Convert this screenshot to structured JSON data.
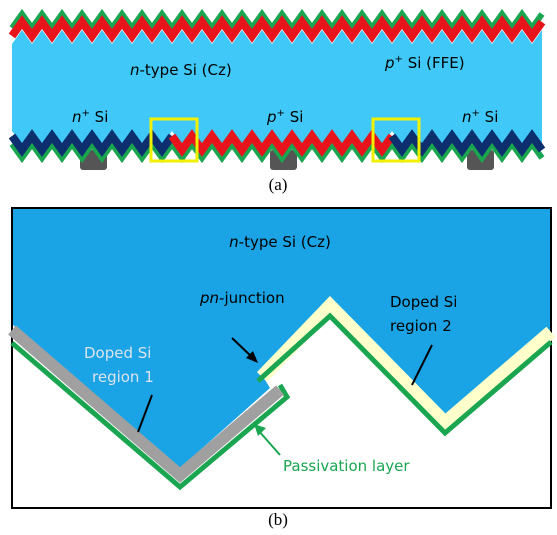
{
  "panel_a": {
    "caption": "(a)",
    "bulk": [
      "n",
      "-type Si (Cz)"
    ],
    "ffe": [
      "p",
      "+",
      " Si (FFE)"
    ],
    "n_left": [
      "n",
      "+",
      " Si"
    ],
    "p_mid": [
      "p",
      "+",
      " Si"
    ],
    "n_right": [
      "n",
      "+",
      " Si"
    ]
  },
  "panel_b": {
    "caption": "(b)",
    "bulk": [
      "n",
      "-type Si (Cz)"
    ],
    "junction": [
      "pn",
      "-junction"
    ],
    "region2": [
      "Doped Si",
      "region 2"
    ],
    "region1": [
      "Doped Si",
      "region 1"
    ],
    "passivation": "Passivation layer"
  }
}
